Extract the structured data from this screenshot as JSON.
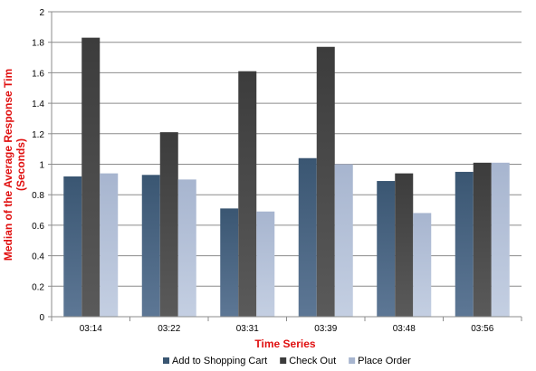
{
  "chart_data": {
    "type": "bar",
    "categories": [
      "03:14",
      "03:22",
      "03:31",
      "03:39",
      "03:48",
      "03:56"
    ],
    "series": [
      {
        "name": "Add to Shopping Cart",
        "values": [
          0.92,
          0.93,
          0.71,
          1.04,
          0.89,
          0.95
        ]
      },
      {
        "name": "Check Out",
        "values": [
          1.83,
          1.21,
          1.61,
          1.77,
          0.94,
          1.01
        ]
      },
      {
        "name": "Place Order",
        "values": [
          0.94,
          0.9,
          0.69,
          1.0,
          0.68,
          1.01
        ]
      }
    ],
    "xlabel": "Time Series",
    "ylabel_line1": "Median of the Average Response Tim",
    "ylabel_line2": "(Seconds)",
    "ylim": [
      0,
      2
    ],
    "yticks": [
      "0",
      "0.2",
      "0.4",
      "0.6",
      "0.8",
      "1",
      "1.2",
      "1.4",
      "1.6",
      "1.8",
      "2"
    ],
    "grid": true,
    "legend_position": "bottom",
    "colors": {
      "series": [
        "#3a5672",
        "#3c3c3c",
        "#a7b5cf"
      ],
      "series_light": [
        "#5d7795",
        "#5a5a5a",
        "#c4cfe2"
      ],
      "axis_label": "#e01010",
      "grid": "#8c8c8c"
    }
  }
}
